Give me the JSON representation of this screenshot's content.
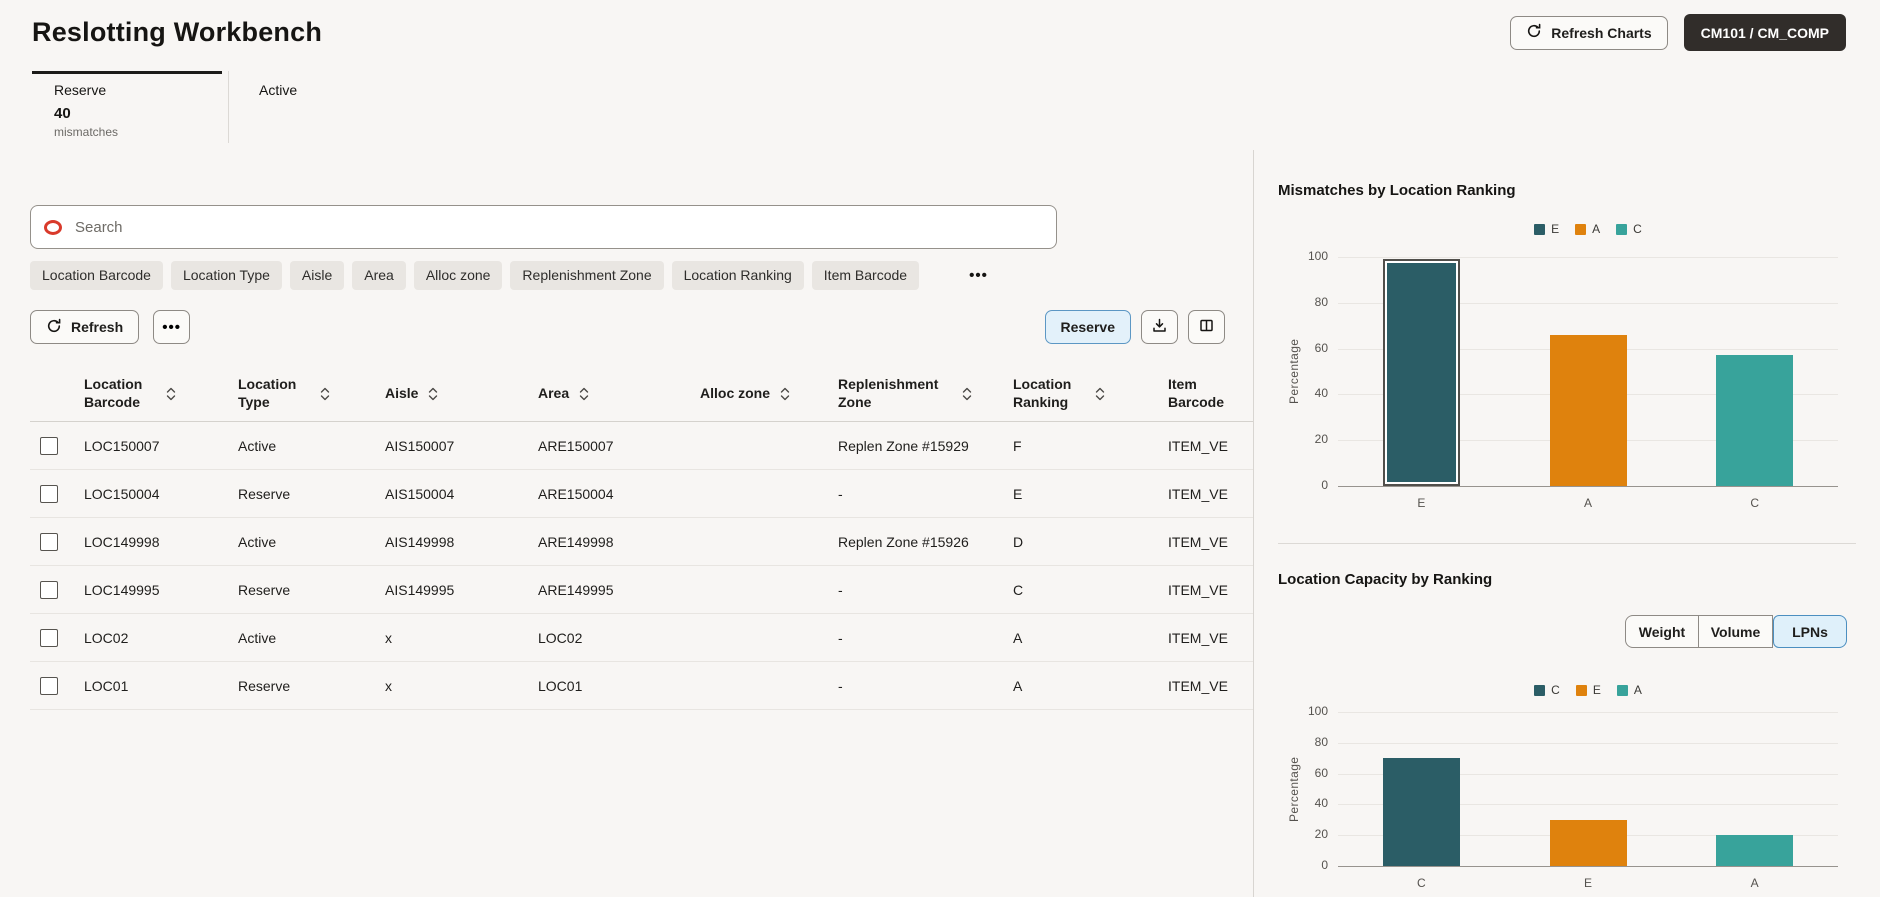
{
  "header": {
    "title": "Reslotting Workbench",
    "refresh_charts_label": "Refresh Charts",
    "facility_label": "CM101 / CM_COMP"
  },
  "tabs": {
    "reserve": {
      "label": "Reserve",
      "count": "40",
      "subtitle": "mismatches"
    },
    "active": {
      "label": "Active"
    }
  },
  "search": {
    "placeholder": "Search",
    "icon": "oracle-red-o",
    "icon_color": "#D93A2B"
  },
  "filters": {
    "chips": [
      "Location Barcode",
      "Location Type",
      "Aisle",
      "Area",
      "Alloc zone",
      "Replenishment Zone",
      "Location Ranking",
      "Item Barcode"
    ],
    "more_label": "•••"
  },
  "toolbar": {
    "refresh_label": "Refresh",
    "more_label": "•••",
    "reserve_label": "Reserve",
    "icons": [
      "refresh-icon",
      "download-icon",
      "columns-icon"
    ]
  },
  "table": {
    "columns": [
      {
        "label": "Location Barcode",
        "sortable": true
      },
      {
        "label": "Location Type",
        "sortable": true
      },
      {
        "label": "Aisle",
        "sortable": true
      },
      {
        "label": "Area",
        "sortable": true
      },
      {
        "label": "Alloc zone",
        "sortable": true
      },
      {
        "label": "Replenishment Zone",
        "sortable": true
      },
      {
        "label": "Location Ranking",
        "sortable": true
      },
      {
        "label": "Item Barcode",
        "sortable": false
      }
    ],
    "rows": [
      [
        "LOC150007",
        "Active",
        "AIS150007",
        "ARE150007",
        "",
        "Replen Zone #15929",
        "F",
        "ITEM_VE"
      ],
      [
        "LOC150004",
        "Reserve",
        "AIS150004",
        "ARE150004",
        "",
        "-",
        "E",
        "ITEM_VE"
      ],
      [
        "LOC149998",
        "Active",
        "AIS149998",
        "ARE149998",
        "",
        "Replen Zone #15926",
        "D",
        "ITEM_VE"
      ],
      [
        "LOC149995",
        "Reserve",
        "AIS149995",
        "ARE149995",
        "",
        "-",
        "C",
        "ITEM_VE"
      ],
      [
        "LOC02",
        "Active",
        "x",
        "LOC02",
        "",
        "-",
        "A",
        "ITEM_VE"
      ],
      [
        "LOC01",
        "Reserve",
        "x",
        "LOC01",
        "",
        "-",
        "A",
        "ITEM_VE"
      ]
    ]
  },
  "chart_data": [
    {
      "type": "bar",
      "title": "Mismatches by Location Ranking",
      "categories": [
        "E",
        "A",
        "C"
      ],
      "values": [
        99,
        66,
        57
      ],
      "bar_colors": [
        "#2B5D66",
        "#DF820D",
        "#38A39B"
      ],
      "selected_bar": "E",
      "legend": [
        "E",
        "A",
        "C"
      ],
      "legend_position": "top",
      "xlabel": "",
      "ylabel": "Percentage",
      "ylim": [
        0,
        100
      ],
      "yticks": [
        0,
        20,
        40,
        60,
        80,
        100
      ],
      "grid": true
    },
    {
      "type": "bar",
      "title": "Location Capacity by Ranking",
      "categories": [
        "C",
        "E",
        "A"
      ],
      "values": [
        70,
        30,
        20
      ],
      "bar_colors": [
        "#2B5D66",
        "#DF820D",
        "#38A39B"
      ],
      "selected_bar": null,
      "legend": [
        "C",
        "E",
        "A"
      ],
      "legend_position": "top",
      "xlabel": "",
      "ylabel": "Percentage",
      "ylim": [
        0,
        100
      ],
      "yticks": [
        0,
        20,
        40,
        60,
        80,
        100
      ],
      "grid": true,
      "toggle": {
        "options": [
          "Weight",
          "Volume",
          "LPNs"
        ],
        "selected": "LPNs"
      }
    }
  ],
  "colors": {
    "page_bg": "#F8F6F4",
    "accent_selected_bg": "#E3F1FA",
    "accent_selected_border": "#5C97C4",
    "dark_button_bg": "#312D2A",
    "oracle_red": "#D93A2B",
    "chart_dark_teal": "#2B5D66",
    "chart_orange": "#DF820D",
    "chart_teal": "#38A39B"
  }
}
